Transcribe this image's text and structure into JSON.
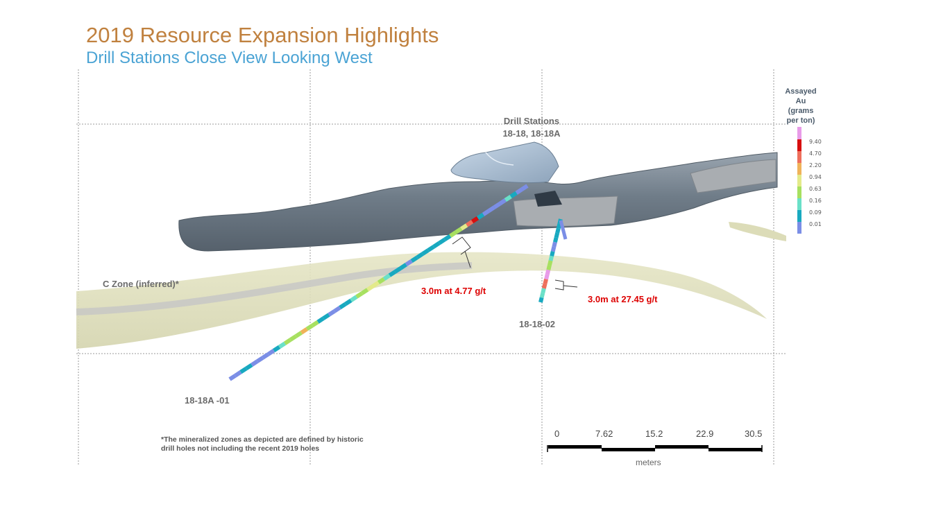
{
  "header": {
    "title": "2019 Resource Expansion Highlights",
    "subtitle": "Drill Stations Close View Looking West"
  },
  "labels": {
    "drill_stations_line1": "Drill Stations",
    "drill_stations_line2": "18-18, 18-18A",
    "c_zone": "C Zone (inferred)*",
    "intercept_a": "3.0m at 4.77 g/t",
    "intercept_b": "3.0m at 27.45 g/t",
    "hole_a": "18-18A -01",
    "hole_b": "18-18-02"
  },
  "legend": {
    "title_line1": "Assayed",
    "title_line2": "Au",
    "title_line3": "(grams",
    "title_line4": "per ton)",
    "entries": [
      {
        "value": "9.40",
        "color": "#d70f0f"
      },
      {
        "value": "4.70",
        "color": "#ee6f5c"
      },
      {
        "value": "2.20",
        "color": "#f0b35a"
      },
      {
        "value": "0.94",
        "color": "#e3ea8a"
      },
      {
        "value": "0.63",
        "color": "#a7e060"
      },
      {
        "value": "0.16",
        "color": "#6ae0c8"
      },
      {
        "value": "0.09",
        "color": "#18a9c0"
      },
      {
        "value": "0.01",
        "color": "#7b8ee6"
      }
    ],
    "top_color": "#e89be8"
  },
  "footnote": {
    "line1": "*The mineralized zones as depicted are defined by historic",
    "line2": "drill holes not including the recent 2019 holes"
  },
  "scale_bar": {
    "ticks": [
      "0",
      "7.62",
      "15.2",
      "22.9",
      "30.5"
    ],
    "unit": "meters"
  },
  "colors": {
    "title": "#c0813f",
    "subtitle": "#4aa3d4",
    "tunnel": "#6f7c88",
    "zone": "#dcdcb8",
    "intercept_label": "#dd0000"
  }
}
